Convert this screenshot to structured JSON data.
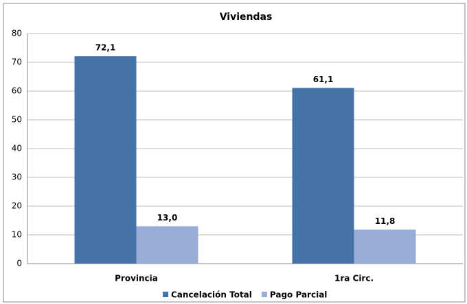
{
  "chart_data": {
    "type": "bar",
    "title": "Viviendas",
    "categories": [
      "Provincia",
      "1ra Circ."
    ],
    "series": [
      {
        "name": "Cancelación Total",
        "color": "#4572a7",
        "values": [
          72.1,
          61.1
        ],
        "value_labels": [
          "72,1",
          "61,1"
        ]
      },
      {
        "name": "Pago Parcial",
        "color": "#99acd5",
        "values": [
          13.0,
          11.8
        ],
        "value_labels": [
          "13,0",
          "11,8"
        ]
      }
    ],
    "ylim": [
      0,
      80
    ],
    "yticks": [
      0,
      10,
      20,
      30,
      40,
      50,
      60,
      70,
      80
    ],
    "grid": true,
    "legend": "bottom"
  }
}
